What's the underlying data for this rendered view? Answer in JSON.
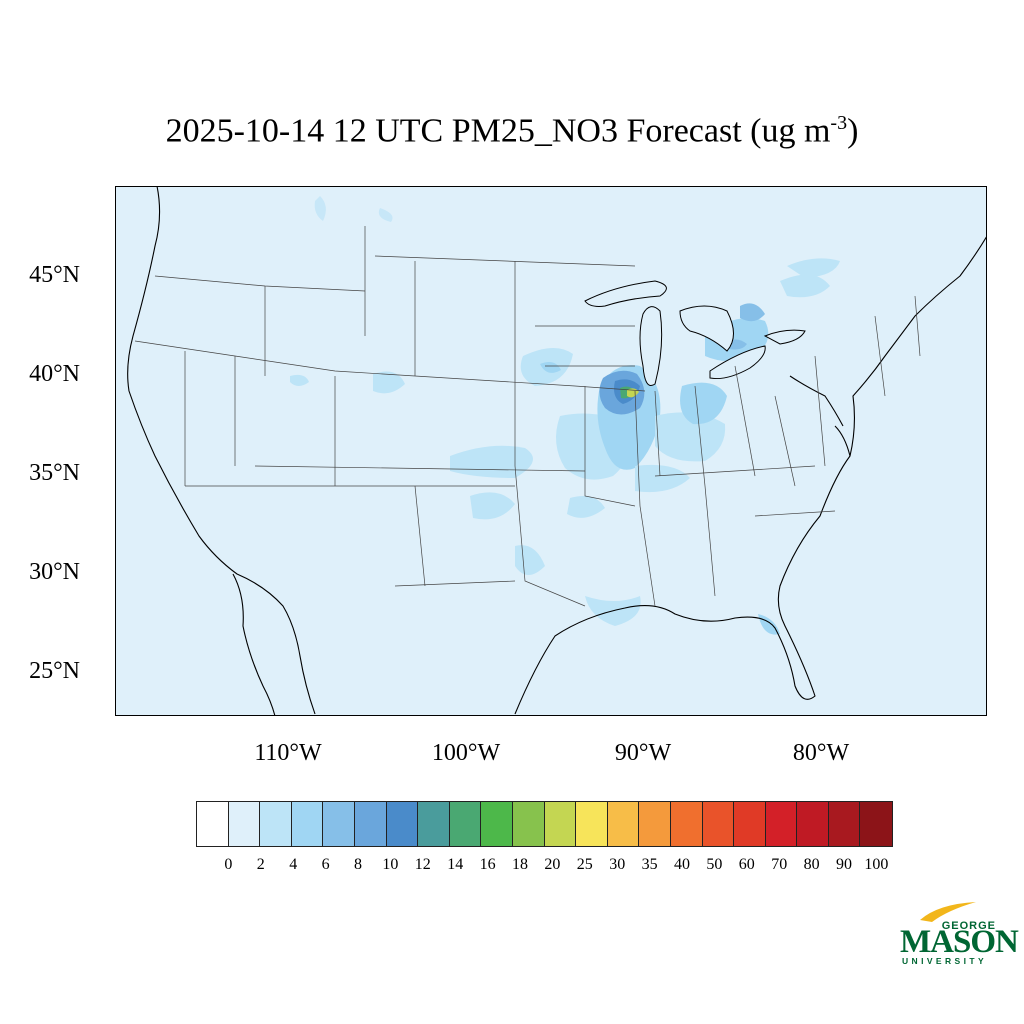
{
  "title": {
    "main": "2025-10-14 12 UTC PM25_NO3 Forecast (ug m",
    "exponent": "-3",
    "close": ")"
  },
  "map": {
    "background_color": "#dff0fa",
    "latitude_labels": [
      "45°N",
      "40°N",
      "35°N",
      "30°N",
      "25°N"
    ],
    "longitude_labels": [
      "110°W",
      "100°W",
      "90°W",
      "80°W"
    ]
  },
  "colorbar": {
    "levels": [
      "0",
      "2",
      "4",
      "6",
      "8",
      "10",
      "12",
      "14",
      "16",
      "18",
      "20",
      "25",
      "30",
      "35",
      "40",
      "50",
      "60",
      "70",
      "80",
      "90",
      "100"
    ],
    "colors": [
      "#ffffff",
      "#dff0fa",
      "#bde4f7",
      "#a0d6f3",
      "#86bfe8",
      "#6aa6dc",
      "#4a8bca",
      "#4a9c9c",
      "#4aa872",
      "#4db84a",
      "#87c24d",
      "#c4d652",
      "#f7e45a",
      "#f7bd48",
      "#f49a3c",
      "#f06f2e",
      "#e9532a",
      "#e03a26",
      "#d32028",
      "#bf1a24",
      "#a8191f",
      "#8c1418"
    ]
  },
  "logo": {
    "top": "GEORGE",
    "main": "MASON",
    "bottom": "UNIVERSITY",
    "color": "#006633",
    "accent": "#f2b61b"
  }
}
